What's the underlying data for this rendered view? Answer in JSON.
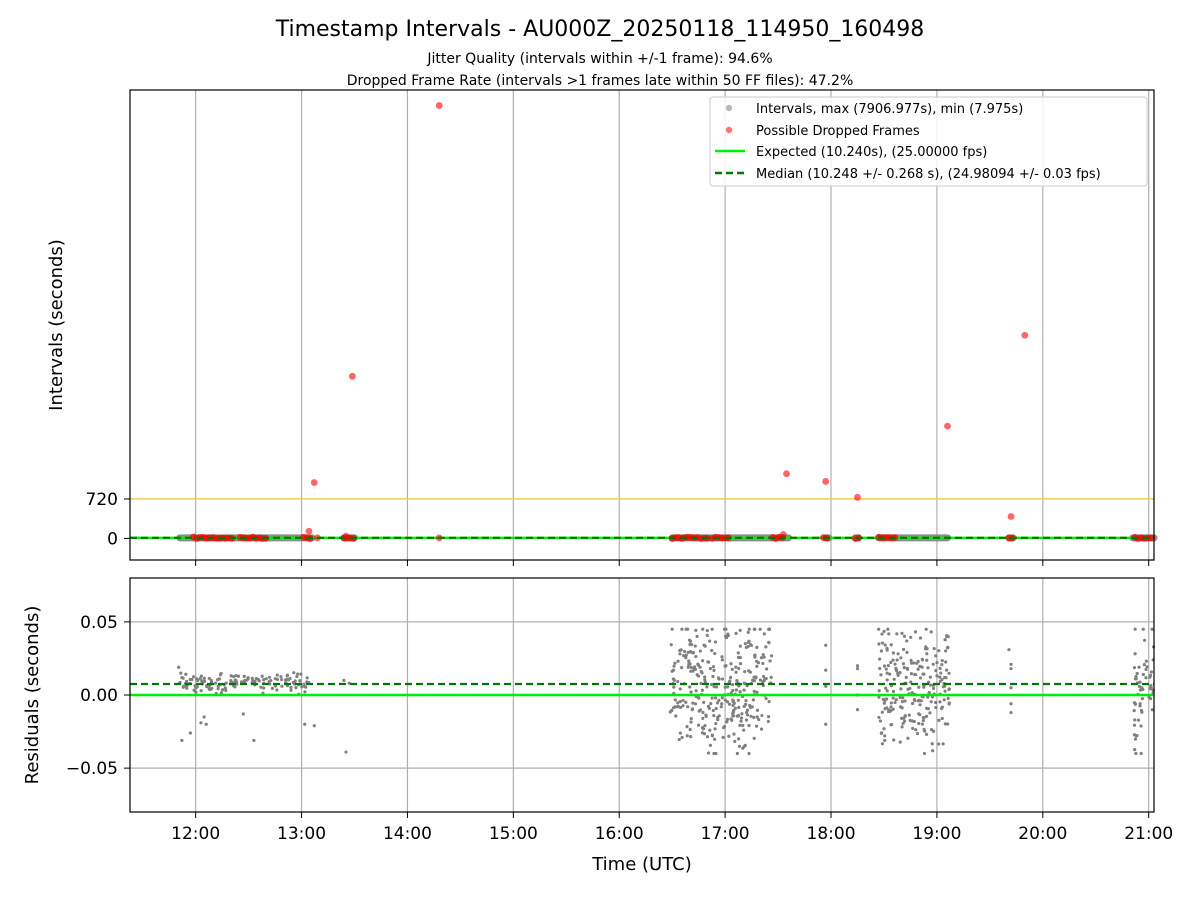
{
  "title": "Timestamp Intervals - AU000Z_20250118_114950_160498",
  "subtitle_1": "Jitter Quality (intervals within +/-1 frame): 94.6%",
  "subtitle_2": "Dropped Frame Rate (intervals >1 frames late within 50 FF files): 47.2%",
  "colors": {
    "intervals": "#808080",
    "dropped": "#ff0000",
    "expected": "#00ee00",
    "median": "#007700",
    "threshold": "#f5c542",
    "grid": "#b0b0b0"
  },
  "chart_data": [
    {
      "type": "scatter",
      "panel": "top",
      "ylabel": "Intervals (seconds)",
      "x_ticks": [
        "12:00",
        "13:00",
        "14:00",
        "15:00",
        "16:00",
        "17:00",
        "18:00",
        "19:00",
        "20:00",
        "21:00"
      ],
      "x_tick_hours": [
        12,
        13,
        14,
        15,
        16,
        17,
        18,
        19,
        20,
        21
      ],
      "xlim_hours": [
        11.38,
        21.05
      ],
      "ylim": [
        -395,
        8190
      ],
      "y_ticks": [
        0,
        720
      ],
      "y_tick_labels": [
        "0",
        "720"
      ],
      "threshold_line": 720,
      "grid": "x",
      "legend_position": "top-right",
      "legend": {
        "intervals": "Intervals, max (7906.977s), min (7.975s)",
        "dropped": "Possible Dropped Frames",
        "expected": "Expected (10.240s), (25.00000 fps)",
        "median": "Median (10.248 +/- 0.268 s), (24.98094 +/- 0.03 fps)"
      },
      "expected_value": 10.24,
      "median_value": 10.248,
      "interval_segments": [
        {
          "start": 11.85,
          "end": 13.1,
          "value": 10.25
        },
        {
          "start": 13.4,
          "end": 13.5,
          "value": 10.25
        },
        {
          "start": 16.5,
          "end": 17.6,
          "value": 10.25
        },
        {
          "start": 17.95,
          "end": 17.98,
          "value": 10.25
        },
        {
          "start": 18.23,
          "end": 18.26,
          "value": 10.25
        },
        {
          "start": 18.45,
          "end": 19.1,
          "value": 10.25
        },
        {
          "start": 19.68,
          "end": 19.72,
          "value": 10.25
        },
        {
          "start": 20.85,
          "end": 21.05,
          "value": 10.25
        }
      ],
      "dropped_points": [
        {
          "x": 14.3,
          "y": 7906
        },
        {
          "x": 19.83,
          "y": 3710
        },
        {
          "x": 13.48,
          "y": 2960
        },
        {
          "x": 19.1,
          "y": 2050
        },
        {
          "x": 17.58,
          "y": 1180
        },
        {
          "x": 13.12,
          "y": 1020
        },
        {
          "x": 17.95,
          "y": 1040
        },
        {
          "x": 18.25,
          "y": 750
        },
        {
          "x": 19.7,
          "y": 400
        },
        {
          "x": 13.07,
          "y": 130
        },
        {
          "x": 17.55,
          "y": 70
        },
        {
          "x": 13.42,
          "y": 40
        },
        {
          "x": 14.3,
          "y": 10
        },
        {
          "x": 13.15,
          "y": 10
        }
      ],
      "dropped_clusters": [
        {
          "start": 11.98,
          "end": 12.35
        },
        {
          "start": 12.42,
          "end": 12.68
        },
        {
          "start": 13.02,
          "end": 13.1
        },
        {
          "start": 13.4,
          "end": 13.5
        },
        {
          "start": 16.5,
          "end": 16.85
        },
        {
          "start": 16.88,
          "end": 17.05
        },
        {
          "start": 17.45,
          "end": 17.57
        },
        {
          "start": 17.93,
          "end": 17.97
        },
        {
          "start": 18.23,
          "end": 18.27
        },
        {
          "start": 18.45,
          "end": 18.62
        },
        {
          "start": 19.68,
          "end": 19.72
        },
        {
          "start": 20.87,
          "end": 21.05
        }
      ]
    },
    {
      "type": "scatter",
      "panel": "bottom",
      "xlabel": "Time (UTC)",
      "ylabel": "Residuals (seconds)",
      "x_ticks": [
        "12:00",
        "13:00",
        "14:00",
        "15:00",
        "16:00",
        "17:00",
        "18:00",
        "19:00",
        "20:00",
        "21:00"
      ],
      "x_tick_hours": [
        12,
        13,
        14,
        15,
        16,
        17,
        18,
        19,
        20,
        21
      ],
      "xlim_hours": [
        11.38,
        21.05
      ],
      "ylim": [
        -0.08,
        0.08
      ],
      "y_ticks": [
        0.05,
        0.0,
        -0.05
      ],
      "y_tick_labels": [
        "0.05",
        "0.00",
        "−0.05"
      ],
      "grid": "both",
      "expected_value": 0.0,
      "median_value": 0.0075,
      "residual_clusters": [
        {
          "start": 11.85,
          "end": 13.1,
          "center": 0.008,
          "spread": 0.003,
          "count": 140
        },
        {
          "start": 16.48,
          "end": 17.45,
          "center": 0.005,
          "spread": 0.022,
          "count": 330
        },
        {
          "start": 18.45,
          "end": 19.12,
          "center": 0.006,
          "spread": 0.02,
          "count": 230
        },
        {
          "start": 20.86,
          "end": 21.05,
          "center": 0.004,
          "spread": 0.022,
          "count": 60
        }
      ],
      "residual_points": [
        {
          "x": 11.84,
          "y": 0.019
        },
        {
          "x": 11.86,
          "y": 0.015
        },
        {
          "x": 11.87,
          "y": -0.031
        },
        {
          "x": 11.95,
          "y": -0.026
        },
        {
          "x": 12.05,
          "y": -0.019
        },
        {
          "x": 12.08,
          "y": -0.015
        },
        {
          "x": 12.1,
          "y": -0.02
        },
        {
          "x": 12.45,
          "y": -0.013
        },
        {
          "x": 12.55,
          "y": -0.031
        },
        {
          "x": 13.03,
          "y": -0.02
        },
        {
          "x": 13.05,
          "y": 0.009
        },
        {
          "x": 13.12,
          "y": -0.021
        },
        {
          "x": 13.4,
          "y": 0.01
        },
        {
          "x": 13.42,
          "y": -0.039
        },
        {
          "x": 13.45,
          "y": 0.008
        },
        {
          "x": 17.95,
          "y": 0.034
        },
        {
          "x": 17.95,
          "y": 0.017
        },
        {
          "x": 17.95,
          "y": 0.006
        },
        {
          "x": 17.95,
          "y": -0.02
        },
        {
          "x": 18.25,
          "y": 0.02
        },
        {
          "x": 18.25,
          "y": 0.018
        },
        {
          "x": 18.25,
          "y": 0.0
        },
        {
          "x": 18.25,
          "y": -0.01
        },
        {
          "x": 19.68,
          "y": 0.031
        },
        {
          "x": 19.7,
          "y": 0.021
        },
        {
          "x": 19.7,
          "y": 0.018
        },
        {
          "x": 19.7,
          "y": 0.005
        },
        {
          "x": 19.7,
          "y": -0.006
        },
        {
          "x": 19.7,
          "y": -0.012
        }
      ]
    }
  ]
}
